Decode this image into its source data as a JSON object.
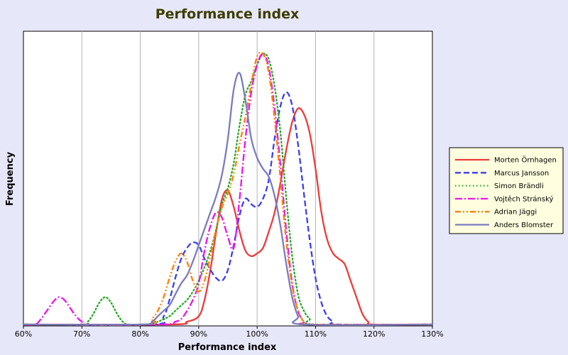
{
  "chart_data": {
    "type": "line",
    "title": "Performance index",
    "xlabel": "Performance index",
    "ylabel": "Frequency",
    "x_ticks": [
      "60%",
      "70%",
      "80%",
      "90%",
      "100%",
      "110%",
      "120%",
      "130%"
    ],
    "xlim": [
      60,
      130
    ],
    "ylim": [
      0,
      100
    ],
    "grid": "vertical",
    "legend_position": "right",
    "series": [
      {
        "name": "Morten Örnhagen",
        "color": "#ee3b3b",
        "dash": "solid",
        "points": [
          [
            60,
            0
          ],
          [
            85,
            0
          ],
          [
            88,
            1
          ],
          [
            90,
            3
          ],
          [
            91,
            9
          ],
          [
            92,
            20
          ],
          [
            93,
            34
          ],
          [
            94,
            46
          ],
          [
            95,
            49
          ],
          [
            96,
            43
          ],
          [
            97,
            34
          ],
          [
            98,
            27
          ],
          [
            99,
            25
          ],
          [
            100,
            26
          ],
          [
            101,
            28
          ],
          [
            102,
            34
          ],
          [
            103,
            41
          ],
          [
            104,
            52
          ],
          [
            105,
            64
          ],
          [
            106,
            74
          ],
          [
            107,
            79
          ],
          [
            108,
            77
          ],
          [
            109,
            70
          ],
          [
            110,
            57
          ],
          [
            111,
            41
          ],
          [
            112,
            31
          ],
          [
            113,
            26
          ],
          [
            114,
            24
          ],
          [
            115,
            22
          ],
          [
            116,
            16
          ],
          [
            117,
            10
          ],
          [
            118,
            4
          ],
          [
            119,
            1
          ],
          [
            120,
            0
          ],
          [
            130,
            0
          ]
        ]
      },
      {
        "name": "Marcus Jansson",
        "color": "#3d3df0",
        "dash": "dashed",
        "points": [
          [
            60,
            0
          ],
          [
            82,
            0
          ],
          [
            84,
            3
          ],
          [
            85,
            9
          ],
          [
            86,
            17
          ],
          [
            87,
            24
          ],
          [
            88,
            28
          ],
          [
            89,
            30
          ],
          [
            90,
            29
          ],
          [
            91,
            24
          ],
          [
            92,
            20
          ],
          [
            93,
            17
          ],
          [
            94,
            16
          ],
          [
            95,
            20
          ],
          [
            96,
            29
          ],
          [
            97,
            40
          ],
          [
            98,
            46
          ],
          [
            99,
            44
          ],
          [
            100,
            43
          ],
          [
            101,
            46
          ],
          [
            102,
            53
          ],
          [
            103,
            68
          ],
          [
            104,
            80
          ],
          [
            105,
            85
          ],
          [
            106,
            80
          ],
          [
            107,
            66
          ],
          [
            108,
            48
          ],
          [
            109,
            31
          ],
          [
            110,
            17
          ],
          [
            111,
            8
          ],
          [
            112,
            3
          ],
          [
            113,
            1
          ],
          [
            114,
            0
          ],
          [
            130,
            0
          ]
        ]
      },
      {
        "name": "Simon Brändli",
        "color": "#22aa22",
        "dash": "dotted",
        "points": [
          [
            60,
            0
          ],
          [
            70,
            0
          ],
          [
            71,
            1
          ],
          [
            72,
            4
          ],
          [
            73,
            8
          ],
          [
            74,
            10
          ],
          [
            75,
            8
          ],
          [
            76,
            4
          ],
          [
            77,
            1
          ],
          [
            78,
            0
          ],
          [
            81,
            0
          ],
          [
            83,
            1
          ],
          [
            84,
            2
          ],
          [
            85,
            3
          ],
          [
            86,
            5
          ],
          [
            87,
            7
          ],
          [
            88,
            9
          ],
          [
            89,
            12
          ],
          [
            90,
            16
          ],
          [
            91,
            21
          ],
          [
            92,
            27
          ],
          [
            93,
            35
          ],
          [
            94,
            44
          ],
          [
            95,
            50
          ],
          [
            96,
            59
          ],
          [
            97,
            73
          ],
          [
            98,
            84
          ],
          [
            99,
            89
          ],
          [
            100,
            95
          ],
          [
            101,
            99
          ],
          [
            102,
            97
          ],
          [
            103,
            87
          ],
          [
            104,
            70
          ],
          [
            105,
            46
          ],
          [
            106,
            25
          ],
          [
            107,
            11
          ],
          [
            108,
            5
          ],
          [
            109,
            2
          ],
          [
            110,
            0
          ],
          [
            130,
            0
          ]
        ]
      },
      {
        "name": "Vojtêch Stránský",
        "color": "#ee11ee",
        "dash": "dashdot",
        "points": [
          [
            60,
            0
          ],
          [
            62,
            0
          ],
          [
            63,
            2
          ],
          [
            64,
            5
          ],
          [
            65,
            8
          ],
          [
            66,
            10
          ],
          [
            67,
            9
          ],
          [
            68,
            6
          ],
          [
            69,
            3
          ],
          [
            70,
            1
          ],
          [
            71,
            0
          ],
          [
            84,
            0
          ],
          [
            86,
            1
          ],
          [
            87,
            2
          ],
          [
            88,
            5
          ],
          [
            89,
            9
          ],
          [
            90,
            15
          ],
          [
            91,
            27
          ],
          [
            92,
            36
          ],
          [
            93,
            41
          ],
          [
            94,
            39
          ],
          [
            95,
            32
          ],
          [
            96,
            28
          ],
          [
            97,
            46
          ],
          [
            98,
            68
          ],
          [
            99,
            85
          ],
          [
            100,
            95
          ],
          [
            101,
            99
          ],
          [
            102,
            94
          ],
          [
            103,
            79
          ],
          [
            104,
            58
          ],
          [
            105,
            34
          ],
          [
            106,
            15
          ],
          [
            107,
            5
          ],
          [
            108,
            1
          ],
          [
            109,
            0
          ],
          [
            130,
            0
          ]
        ]
      },
      {
        "name": "Adrian Jäggi",
        "color": "#ff8000",
        "dash": "dashdotdot",
        "points": [
          [
            60,
            0
          ],
          [
            81,
            0
          ],
          [
            82,
            2
          ],
          [
            83,
            5
          ],
          [
            84,
            10
          ],
          [
            85,
            17
          ],
          [
            86,
            23
          ],
          [
            87,
            26
          ],
          [
            88,
            23
          ],
          [
            89,
            16
          ],
          [
            90,
            12
          ],
          [
            91,
            16
          ],
          [
            92,
            25
          ],
          [
            93,
            35
          ],
          [
            94,
            43
          ],
          [
            95,
            48
          ],
          [
            96,
            55
          ],
          [
            97,
            66
          ],
          [
            98,
            76
          ],
          [
            99,
            88
          ],
          [
            100,
            98
          ],
          [
            101,
            99
          ],
          [
            102,
            92
          ],
          [
            103,
            75
          ],
          [
            104,
            53
          ],
          [
            105,
            30
          ],
          [
            106,
            14
          ],
          [
            107,
            5
          ],
          [
            108,
            1
          ],
          [
            109,
            0
          ],
          [
            130,
            0
          ]
        ]
      },
      {
        "name": "Anders Blomster",
        "color": "#7b7bbf",
        "dash": "solid",
        "points": [
          [
            60,
            0
          ],
          [
            80,
            0
          ],
          [
            82,
            1
          ],
          [
            83,
            3
          ],
          [
            84,
            5
          ],
          [
            85,
            7
          ],
          [
            86,
            11
          ],
          [
            87,
            15
          ],
          [
            88,
            18
          ],
          [
            89,
            23
          ],
          [
            90,
            29
          ],
          [
            91,
            35
          ],
          [
            92,
            41
          ],
          [
            93,
            47
          ],
          [
            94,
            55
          ],
          [
            95,
            68
          ],
          [
            96,
            86
          ],
          [
            97,
            92
          ],
          [
            98,
            82
          ],
          [
            99,
            68
          ],
          [
            100,
            61
          ],
          [
            101,
            57
          ],
          [
            102,
            54
          ],
          [
            103,
            47
          ],
          [
            104,
            36
          ],
          [
            105,
            22
          ],
          [
            106,
            10
          ],
          [
            107,
            3
          ],
          [
            108,
            0
          ],
          [
            130,
            0
          ]
        ]
      }
    ]
  }
}
